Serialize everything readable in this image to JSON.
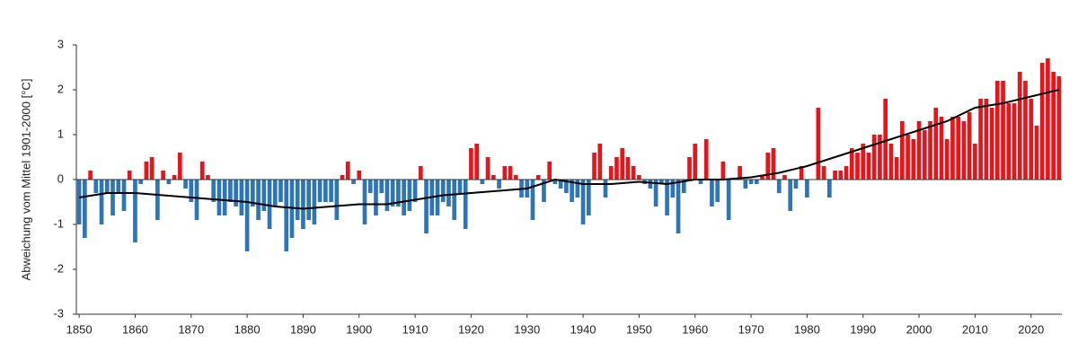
{
  "chart_data": {
    "type": "bar",
    "ylabel": "Abweichung vom Mittel 1901-2000 [°C]",
    "x": [
      1850,
      1851,
      1852,
      1853,
      1854,
      1855,
      1856,
      1857,
      1858,
      1859,
      1860,
      1861,
      1862,
      1863,
      1864,
      1865,
      1866,
      1867,
      1868,
      1869,
      1870,
      1871,
      1872,
      1873,
      1874,
      1875,
      1876,
      1877,
      1878,
      1879,
      1880,
      1881,
      1882,
      1883,
      1884,
      1885,
      1886,
      1887,
      1888,
      1889,
      1890,
      1891,
      1892,
      1893,
      1894,
      1895,
      1896,
      1897,
      1898,
      1899,
      1900,
      1901,
      1902,
      1903,
      1904,
      1905,
      1906,
      1907,
      1908,
      1909,
      1910,
      1911,
      1912,
      1913,
      1914,
      1915,
      1916,
      1917,
      1918,
      1919,
      1920,
      1921,
      1922,
      1923,
      1924,
      1925,
      1926,
      1927,
      1928,
      1929,
      1930,
      1931,
      1932,
      1933,
      1934,
      1935,
      1936,
      1937,
      1938,
      1939,
      1940,
      1941,
      1942,
      1943,
      1944,
      1945,
      1946,
      1947,
      1948,
      1949,
      1950,
      1951,
      1952,
      1953,
      1954,
      1955,
      1956,
      1957,
      1958,
      1959,
      1960,
      1961,
      1962,
      1963,
      1964,
      1965,
      1966,
      1967,
      1968,
      1969,
      1970,
      1971,
      1972,
      1973,
      1974,
      1975,
      1976,
      1977,
      1978,
      1979,
      1980,
      1981,
      1982,
      1983,
      1984,
      1985,
      1986,
      1987,
      1988,
      1989,
      1990,
      1991,
      1992,
      1993,
      1994,
      1995,
      1996,
      1997,
      1998,
      1999,
      2000,
      2001,
      2002,
      2003,
      2004,
      2005,
      2006,
      2007,
      2008,
      2009,
      2010,
      2011,
      2012,
      2013,
      2014,
      2015,
      2016,
      2017,
      2018,
      2019,
      2020,
      2021,
      2022,
      2023,
      2024,
      2025
    ],
    "values": [
      -1.0,
      -1.3,
      0.2,
      -0.3,
      -1.0,
      -0.3,
      -0.8,
      -0.3,
      -0.7,
      0.2,
      -1.4,
      -0.1,
      0.4,
      0.5,
      -0.9,
      0.2,
      -0.1,
      0.1,
      0.6,
      -0.2,
      -0.5,
      -0.9,
      0.4,
      0.1,
      -0.5,
      -0.8,
      -0.8,
      -0.5,
      -0.6,
      -0.8,
      -1.6,
      -0.6,
      -0.9,
      -0.7,
      -1.1,
      -0.6,
      -0.5,
      -1.6,
      -1.3,
      -0.9,
      -1.1,
      -0.9,
      -1.0,
      -0.5,
      -0.5,
      -0.5,
      -0.9,
      0.1,
      0.4,
      -0.1,
      0.2,
      -1.0,
      -0.3,
      -0.8,
      -0.3,
      -0.7,
      -0.6,
      -0.6,
      -0.8,
      -0.7,
      -0.5,
      0.3,
      -1.2,
      -0.8,
      -0.8,
      -0.5,
      -0.6,
      -0.9,
      -0.3,
      -1.1,
      0.7,
      0.8,
      -0.1,
      0.5,
      0.1,
      -0.2,
      0.3,
      0.3,
      0.1,
      -0.4,
      -0.4,
      -0.9,
      0.1,
      -0.5,
      0.4,
      -0.1,
      -0.2,
      -0.3,
      -0.5,
      -0.4,
      -1.0,
      -0.8,
      0.6,
      0.8,
      -0.4,
      0.3,
      0.5,
      0.7,
      0.5,
      0.3,
      0.1,
      -0.1,
      -0.2,
      -0.6,
      -0.1,
      -0.8,
      -0.4,
      -1.2,
      -0.3,
      0.5,
      0.8,
      -0.1,
      0.9,
      -0.6,
      -0.5,
      0.4,
      -0.9,
      0.0,
      0.3,
      -0.2,
      -0.1,
      -0.1,
      0.1,
      0.6,
      0.7,
      -0.3,
      0.1,
      -0.7,
      -0.2,
      0.3,
      -0.4,
      0.0,
      1.6,
      0.3,
      -0.4,
      0.2,
      0.2,
      0.3,
      0.7,
      0.6,
      0.8,
      0.6,
      1.0,
      1.0,
      1.8,
      0.8,
      0.5,
      1.3,
      1.0,
      0.9,
      1.3,
      1.1,
      1.3,
      1.6,
      1.4,
      0.9,
      1.4,
      1.4,
      1.3,
      1.5,
      0.8,
      1.8,
      1.8,
      1.6,
      2.2,
      2.2,
      1.7,
      1.7,
      2.4,
      2.2,
      1.8,
      1.2,
      2.6,
      2.7,
      2.4,
      2.3
    ],
    "positive_color": "#e8141a",
    "negative_color": "#2e75b6",
    "trend": {
      "color": "#000000",
      "x": [
        1850,
        1855,
        1860,
        1865,
        1870,
        1875,
        1880,
        1885,
        1890,
        1895,
        1900,
        1905,
        1910,
        1915,
        1920,
        1925,
        1930,
        1935,
        1940,
        1945,
        1950,
        1955,
        1960,
        1965,
        1970,
        1975,
        1980,
        1985,
        1990,
        1995,
        2000,
        2005,
        2010,
        2015,
        2020,
        2025
      ],
      "values": [
        -0.4,
        -0.3,
        -0.3,
        -0.35,
        -0.4,
        -0.45,
        -0.5,
        -0.6,
        -0.65,
        -0.6,
        -0.55,
        -0.55,
        -0.45,
        -0.35,
        -0.3,
        -0.25,
        -0.2,
        0.0,
        -0.1,
        -0.1,
        -0.05,
        -0.1,
        0.0,
        0.0,
        0.05,
        0.15,
        0.3,
        0.5,
        0.7,
        0.9,
        1.1,
        1.3,
        1.6,
        1.7,
        1.85,
        2.0
      ]
    },
    "xlim": [
      1849.5,
      2025.5
    ],
    "xticks": [
      1850,
      1860,
      1870,
      1880,
      1890,
      1900,
      1910,
      1920,
      1930,
      1940,
      1950,
      1960,
      1970,
      1980,
      1990,
      2000,
      2010,
      2020
    ],
    "ylim": [
      -3,
      3
    ],
    "yticks": [
      -3,
      -2,
      -1,
      0,
      1,
      2,
      3
    ]
  }
}
